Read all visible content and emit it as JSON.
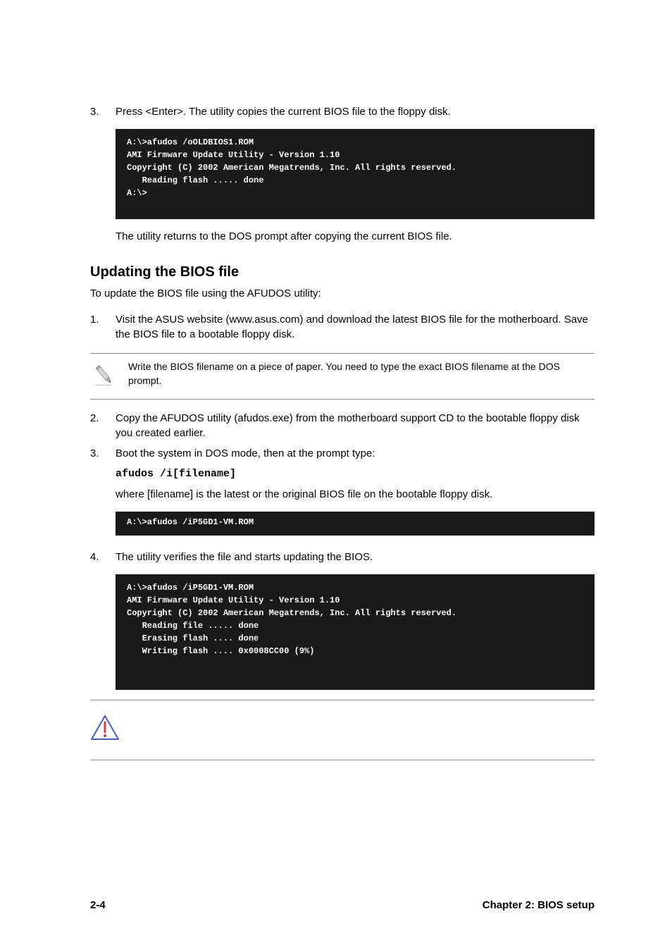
{
  "step3": {
    "num": "3.",
    "text": "Press <Enter>. The utility copies the current BIOS file to the floppy disk.",
    "terminal": "A:\\>afudos /oOLDBIOS1.ROM\nAMI Firmware Update Utility - Version 1.10\nCopyright (C) 2002 American Megatrends, Inc. All rights reserved.\n   Reading flash ..... done\nA:\\>\n ",
    "after": "The utility returns to the DOS prompt after copying the current BIOS file."
  },
  "heading": "Updating the BIOS file",
  "intro": "To update the BIOS file using the AFUDOS utility:",
  "update": {
    "s1": {
      "num": "1.",
      "text": "Visit the ASUS website (www.asus.com) and download the latest BIOS file for the motherboard. Save the BIOS file to a bootable floppy disk."
    },
    "note": "Write the BIOS filename on a piece of paper. You need to type the exact BIOS filename at the DOS prompt.",
    "s2": {
      "num": "2.",
      "text": "Copy the AFUDOS utility (afudos.exe) from the motherboard support CD to the bootable floppy disk you created earlier."
    },
    "s3": {
      "num": "3.",
      "text": "Boot the system in DOS mode, then at the prompt type:",
      "cmd": "afudos /i[filename]",
      "after": "where [filename] is the latest or the original BIOS file on the bootable floppy disk.",
      "terminal": "A:\\>afudos /iP5GD1-VM.ROM"
    },
    "s4": {
      "num": "4.",
      "text": "The utility verifies the file and starts updating the BIOS.",
      "terminal": "A:\\>afudos /iP5GD1-VM.ROM\nAMI Firmware Update Utility - Version 1.10\nCopyright (C) 2002 American Megatrends, Inc. All rights reserved.\n   Reading file ..... done\n   Erasing flash .... done\n   Writing flash .... 0x0008CC00 (9%)\n\n "
    }
  },
  "footer": {
    "left": "2-4",
    "right": "Chapter 2: BIOS setup"
  },
  "icons": {
    "pencil_svg": "<svg width='40' height='40' viewBox='0 0 40 40'><g transform='rotate(-40 20 20)'><rect x='17' y='5' width='6' height='22' fill='#d8d8d8' stroke='#888' stroke-width='0.8'/><polygon points='17,27 23,27 20,34' fill='#c0b090' stroke='#888' stroke-width='0.8'/><polygon points='18.7,31 21.3,31 20,34' fill='#555'/><rect x='17' y='5' width='6' height='3' fill='#b0b0b0' stroke='#888' stroke-width='0.8'/></g><path d='M6 33 Q14 36 30 34' stroke='#bbb' stroke-width='1' fill='none'/></svg>",
    "warning_svg": "<svg width='42' height='38' viewBox='0 0 42 38'><polygon points='21,2 40,35 2,35' fill='#fff' stroke='#4060d0' stroke-width='2' stroke-linejoin='round'/><line x1='21' y1='11' x2='21' y2='25' stroke='#d04040' stroke-width='3' stroke-linecap='round'/><circle cx='21' cy='30' r='2' fill='#d04040'/></svg>"
  }
}
